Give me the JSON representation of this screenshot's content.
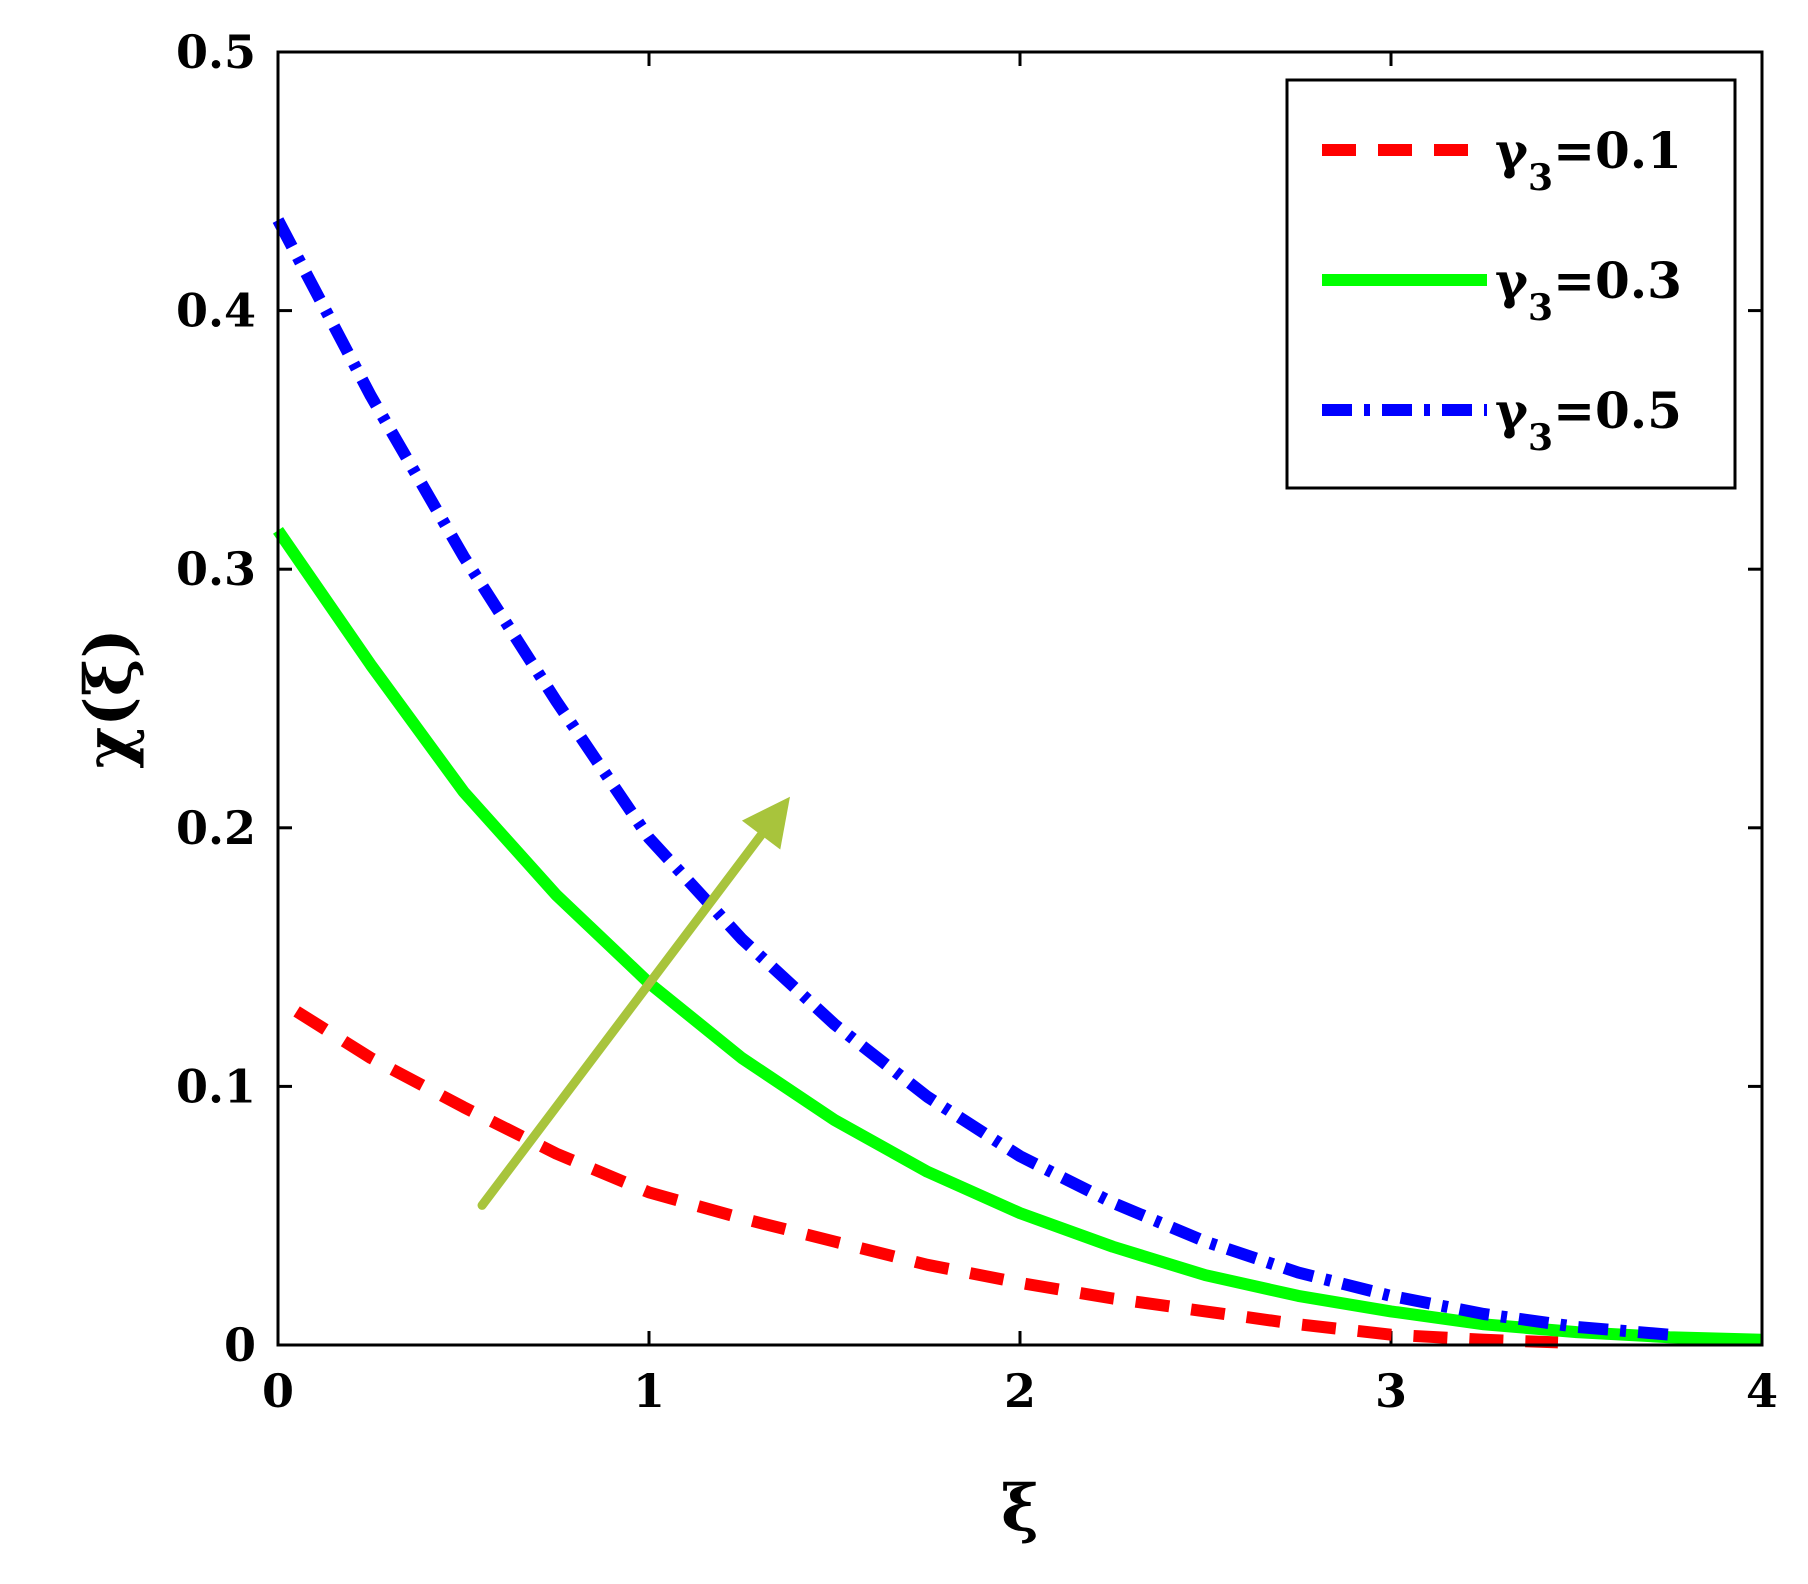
{
  "chart_data": {
    "type": "line",
    "xlabel": "ξ",
    "ylabel": "χ(ξ)",
    "xlim": [
      0,
      4
    ],
    "ylim": [
      0,
      0.5
    ],
    "xticks": [
      "0",
      "1",
      "2",
      "3",
      "4"
    ],
    "yticks": [
      "0",
      "0.1",
      "0.2",
      "0.3",
      "0.4",
      "0.5"
    ],
    "grid": false,
    "legend_position": "top-right",
    "series": [
      {
        "name": "γ3=0.1",
        "label_main": "γ",
        "label_sub": "3",
        "label_value": "=0.1",
        "color": "#ff0000",
        "style": "dashed",
        "x": [
          0.05,
          0.25,
          0.5,
          0.75,
          1.0,
          1.25,
          1.5,
          1.75,
          2.0,
          2.25,
          2.5,
          2.75,
          3.0,
          3.25,
          3.45
        ],
        "y": [
          0.129,
          0.111,
          0.092,
          0.074,
          0.059,
          0.049,
          0.04,
          0.031,
          0.024,
          0.018,
          0.013,
          0.008,
          0.004,
          0.002,
          0.001
        ]
      },
      {
        "name": "γ3=0.3",
        "label_main": "γ",
        "label_sub": "3",
        "label_value": "=0.3",
        "color": "#00ff00",
        "style": "solid",
        "x": [
          0.0,
          0.25,
          0.5,
          0.75,
          1.0,
          1.25,
          1.5,
          1.75,
          2.0,
          2.25,
          2.5,
          2.75,
          3.0,
          3.25,
          3.5,
          3.75,
          4.0
        ],
        "y": [
          0.315,
          0.263,
          0.214,
          0.174,
          0.14,
          0.111,
          0.087,
          0.067,
          0.051,
          0.038,
          0.027,
          0.019,
          0.013,
          0.008,
          0.005,
          0.003,
          0.002
        ]
      },
      {
        "name": "γ3=0.5",
        "label_main": "γ",
        "label_sub": "3",
        "label_value": "=0.5",
        "color": "#0000ff",
        "style": "dashdot",
        "x": [
          0.0,
          0.25,
          0.5,
          0.75,
          1.0,
          1.25,
          1.5,
          1.75,
          2.0,
          2.25,
          2.5,
          2.75,
          3.0,
          3.25,
          3.5,
          3.75
        ],
        "y": [
          0.435,
          0.367,
          0.305,
          0.249,
          0.196,
          0.157,
          0.124,
          0.096,
          0.073,
          0.055,
          0.04,
          0.028,
          0.019,
          0.012,
          0.007,
          0.004
        ]
      }
    ],
    "annotations": [
      {
        "type": "arrow",
        "color": "#a8c43c",
        "x_start": 0.55,
        "y_start": 0.054,
        "x_end": 1.38,
        "y_end": 0.212
      }
    ]
  }
}
